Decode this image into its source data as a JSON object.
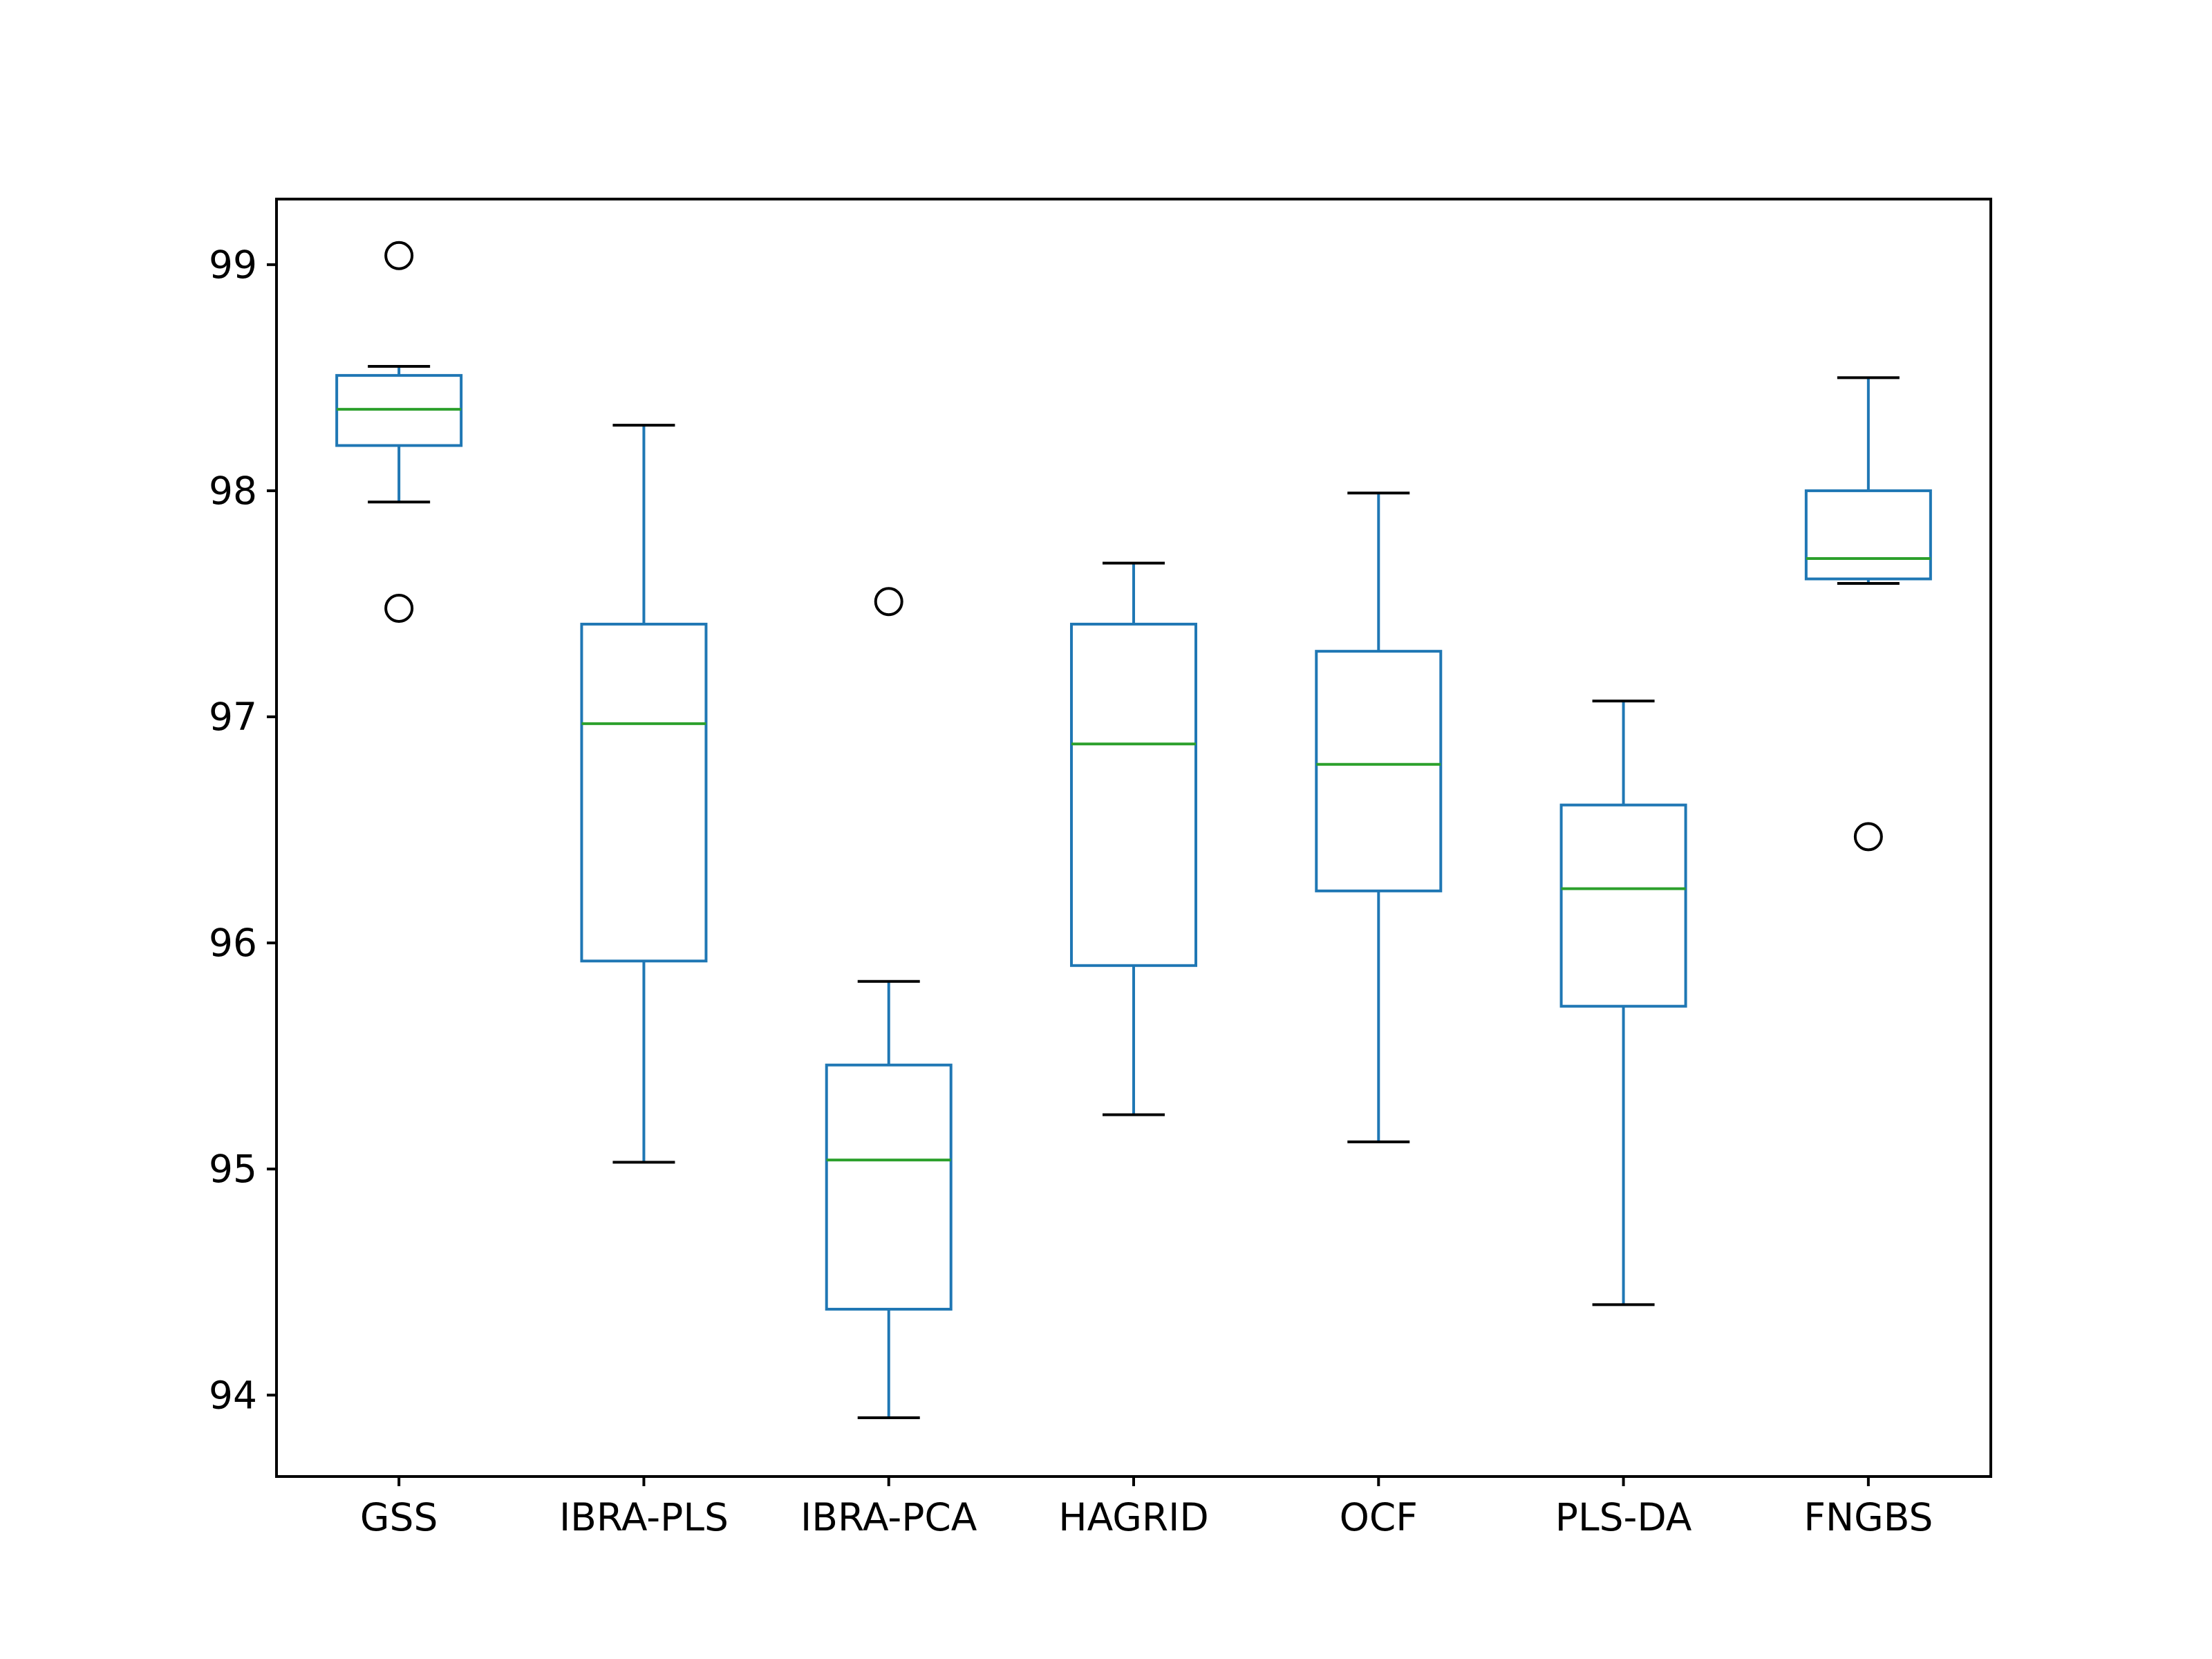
{
  "chart_data": {
    "type": "box",
    "title": "",
    "xlabel": "",
    "ylabel": "",
    "ylim": [
      93.64,
      99.29
    ],
    "y_ticks": [
      94,
      95,
      96,
      97,
      98,
      99
    ],
    "categories": [
      "GSS",
      "IBRA-PLS",
      "IBRA-PCA",
      "HAGRID",
      "OCF",
      "PLS-DA",
      "FNGBS"
    ],
    "boxes": [
      {
        "name": "GSS",
        "whisker_low": 97.95,
        "q1": 98.2,
        "median": 98.36,
        "q3": 98.51,
        "whisker_high": 98.55,
        "outliers": [
          99.04,
          97.48
        ]
      },
      {
        "name": "IBRA-PLS",
        "whisker_low": 95.03,
        "q1": 95.92,
        "median": 96.97,
        "q3": 97.41,
        "whisker_high": 98.29,
        "outliers": []
      },
      {
        "name": "IBRA-PCA",
        "whisker_low": 93.9,
        "q1": 94.38,
        "median": 95.04,
        "q3": 95.46,
        "whisker_high": 95.83,
        "outliers": [
          97.51
        ]
      },
      {
        "name": "HAGRID",
        "whisker_low": 95.24,
        "q1": 95.9,
        "median": 96.88,
        "q3": 97.41,
        "whisker_high": 97.68,
        "outliers": []
      },
      {
        "name": "OCF",
        "whisker_low": 95.12,
        "q1": 96.23,
        "median": 96.79,
        "q3": 97.29,
        "whisker_high": 97.99,
        "outliers": []
      },
      {
        "name": "PLS-DA",
        "whisker_low": 94.4,
        "q1": 95.72,
        "median": 96.24,
        "q3": 96.61,
        "whisker_high": 97.07,
        "outliers": []
      },
      {
        "name": "FNGBS",
        "whisker_low": 97.59,
        "q1": 97.61,
        "median": 97.7,
        "q3": 98.0,
        "whisker_high": 98.5,
        "outliers": [
          96.47
        ]
      }
    ],
    "colors": {
      "box": "#1f77b4",
      "median": "#2ca02c",
      "cap": "#000000",
      "outlier": "#000000",
      "axes": "#000000"
    },
    "grid": false,
    "legend": "none"
  }
}
